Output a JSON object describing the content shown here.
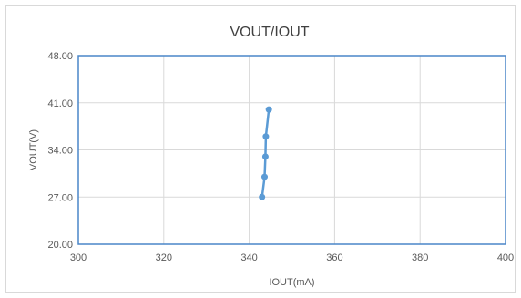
{
  "chart_data": {
    "type": "line",
    "title": "VOUT/IOUT",
    "xlabel": "IOUT(mA)",
    "ylabel": "VOUT(V)",
    "xlim": [
      300,
      400
    ],
    "ylim": [
      20,
      48
    ],
    "xticks": [
      300,
      320,
      340,
      360,
      380,
      400
    ],
    "yticks": [
      20,
      27,
      34,
      41,
      48
    ],
    "x_tick_labels": [
      "300",
      "320",
      "340",
      "360",
      "380",
      "400"
    ],
    "y_tick_labels": [
      "20.00",
      "27.00",
      "34.00",
      "41.00",
      "48.00"
    ],
    "grid": true,
    "series": [
      {
        "x": [
          343.0,
          343.6,
          343.8,
          343.9,
          344.6
        ],
        "y": [
          27.0,
          30.0,
          33.0,
          36.0,
          40.0
        ]
      }
    ],
    "colors": {
      "series": "#5b9bd5",
      "plot_border": "#4a86c8",
      "grid": "#d9d9d9"
    }
  }
}
